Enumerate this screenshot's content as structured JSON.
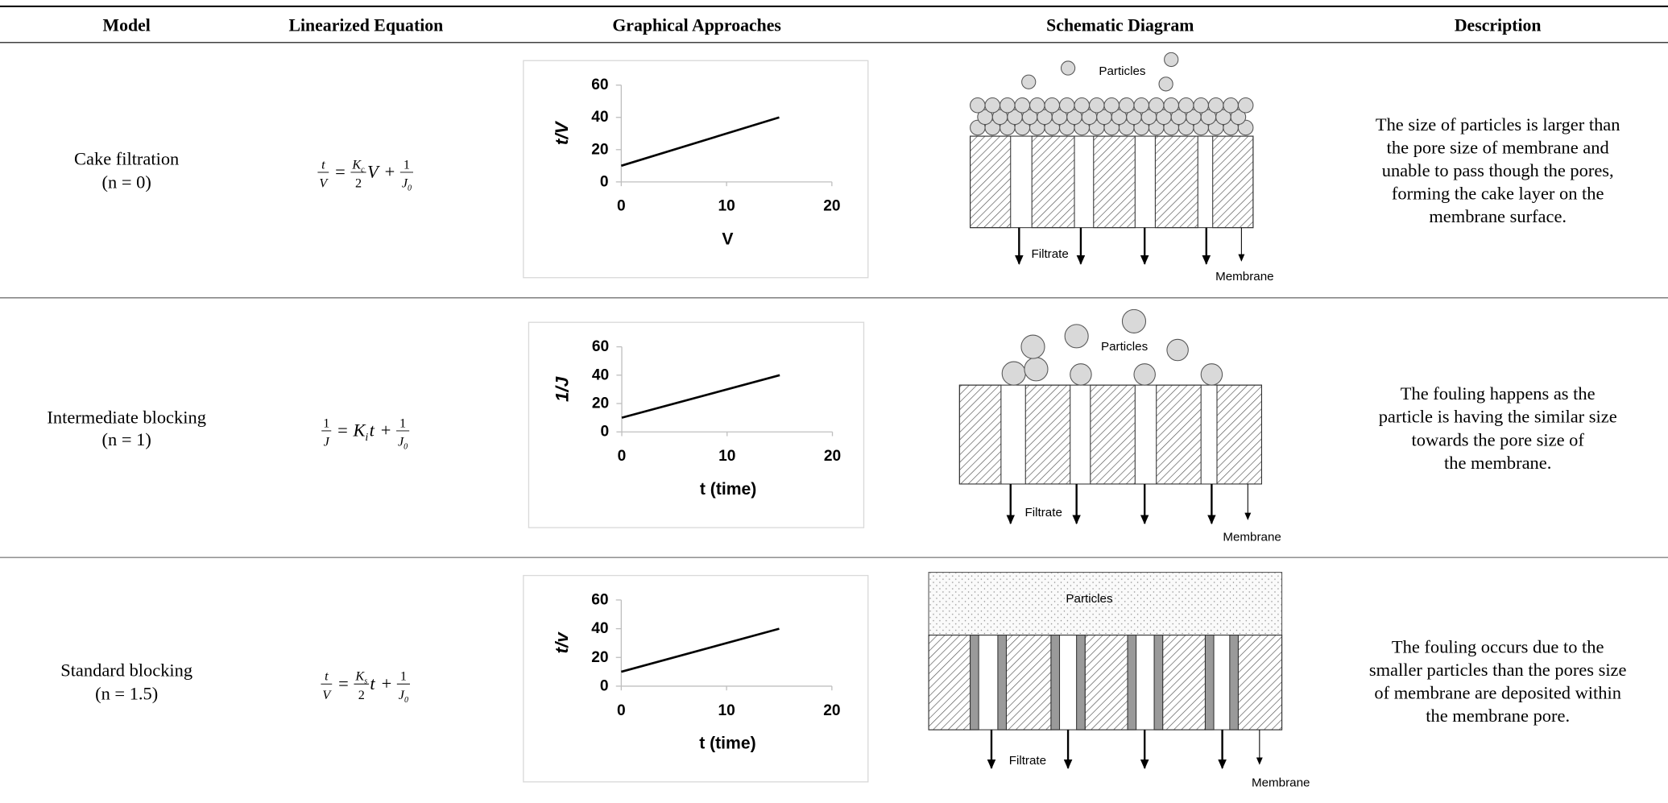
{
  "table": {
    "headers": [
      "Model",
      "Linearized Equation",
      "Graphical Approaches",
      "Schematic Diagram",
      "Description"
    ],
    "rows": [
      {
        "model": [
          "Cake filtration",
          "(n = 0)"
        ],
        "equation": [
          {
            "num": "t",
            "den": "V"
          },
          "=",
          {
            "num": {
              "text": "K",
              "sub": "c"
            },
            "den": "2"
          },
          "V",
          "+",
          {
            "num": "1",
            "den": {
              "text": "J",
              "sub": "0"
            }
          }
        ],
        "graph": {
          "type": "line",
          "x_label": "V",
          "y_label": "t/V",
          "x": [
            0,
            15
          ],
          "values": [
            10,
            40
          ],
          "xlim": [
            0,
            20
          ],
          "ylim": [
            0,
            60
          ],
          "xticks": [
            0,
            10,
            20
          ],
          "yticks": [
            0,
            20,
            40,
            60
          ],
          "color": "#000000"
        },
        "diagram": {
          "particles": "Particles",
          "filtrate": "Filtrate",
          "membrane": "Membrane"
        },
        "description": [
          "The size of particles is larger than",
          "the pore size of membrane and",
          "unable to pass though the pores,",
          "forming the cake layer on the",
          "membrane surface."
        ]
      },
      {
        "model": [
          "Intermediate blocking",
          "(n = 1)"
        ],
        "equation": [
          {
            "num": "1",
            "den": "J"
          },
          "=",
          {
            "text": "K",
            "sub": "i"
          },
          "t",
          "+",
          {
            "num": "1",
            "den": {
              "text": "J",
              "sub": "0"
            }
          }
        ],
        "graph": {
          "type": "line",
          "x_label": "t (time)",
          "y_label": "1/J",
          "x": [
            0,
            15
          ],
          "values": [
            10,
            40
          ],
          "xlim": [
            0,
            20
          ],
          "ylim": [
            0,
            60
          ],
          "xticks": [
            0,
            10,
            20
          ],
          "yticks": [
            0,
            20,
            40,
            60
          ],
          "color": "#000000"
        },
        "diagram": {
          "particles": "Particles",
          "filtrate": "Filtrate",
          "membrane": "Membrane"
        },
        "description": [
          "The fouling happens as the",
          "particle is having the similar size",
          "towards the pore size of",
          "the membrane."
        ]
      },
      {
        "model": [
          "Standard blocking",
          "(n = 1.5)"
        ],
        "equation": [
          {
            "num": "t",
            "den": "V"
          },
          "=",
          {
            "num": {
              "text": "K",
              "sub": "s"
            },
            "den": "2"
          },
          "t",
          "+",
          {
            "num": "1",
            "den": {
              "text": "J",
              "sub": "0"
            }
          }
        ],
        "graph": {
          "type": "line",
          "x_label": "t (time)",
          "y_label": "t/v",
          "x": [
            0,
            15
          ],
          "values": [
            10,
            40
          ],
          "xlim": [
            0,
            20
          ],
          "ylim": [
            0,
            60
          ],
          "xticks": [
            0,
            10,
            20
          ],
          "yticks": [
            0,
            20,
            40,
            60
          ],
          "color": "#000000"
        },
        "diagram": {
          "particles": "Particles",
          "filtrate": "Filtrate",
          "membrane": "Membrane"
        },
        "description": [
          "The fouling occurs due to the",
          "smaller particles than the pores size",
          "of membrane are deposited within",
          "the membrane pore."
        ]
      }
    ]
  }
}
